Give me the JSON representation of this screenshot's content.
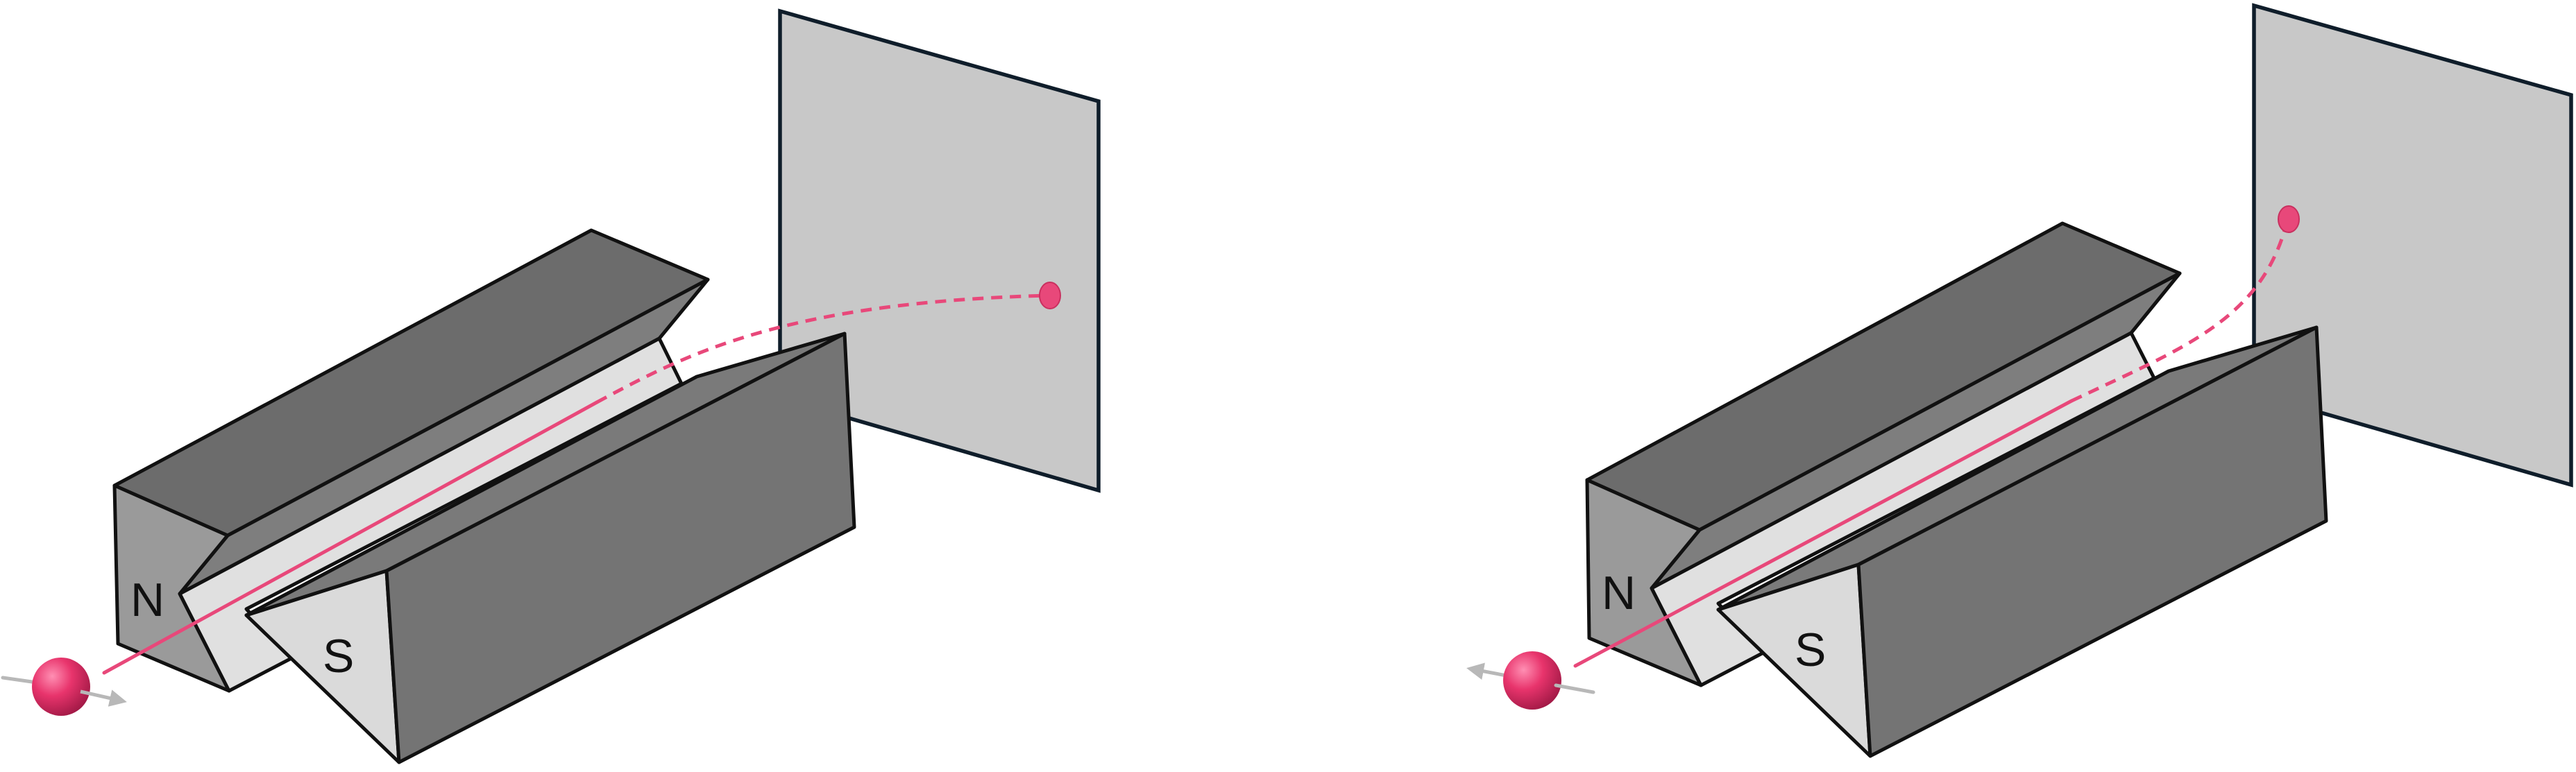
{
  "colors": {
    "screen": "#c8c8c8",
    "magnet_top": "#6c6c6c",
    "magnet_side": "#747474",
    "magnet_front": "#9a9a9a",
    "groove": "#e0e0e0",
    "pole_face": "#dadada",
    "beam": "#e8487a",
    "spin_arrow": "#b8b8b8",
    "atom": "#e8346c"
  },
  "panels": [
    {
      "north_label": "N",
      "south_label": "S",
      "spin_direction": "down-right",
      "deflection": "slight-up"
    },
    {
      "north_label": "N",
      "south_label": "S",
      "spin_direction": "up-left",
      "deflection": "strong-up"
    }
  ]
}
